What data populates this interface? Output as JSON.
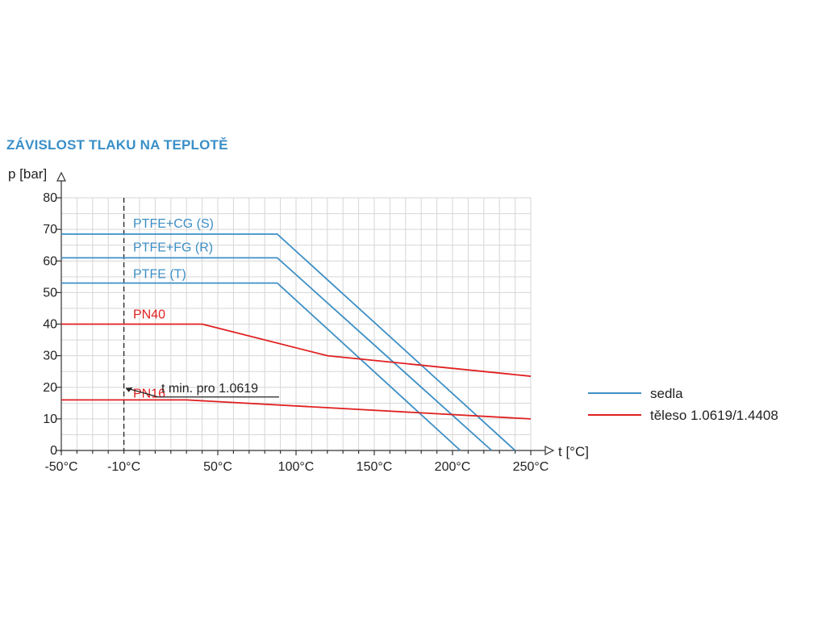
{
  "title": "ZÁVISLOST TLAKU NA TEPLOTĚ",
  "chart_data": {
    "type": "line",
    "ylabel": "p [bar]",
    "xlabel": "t [°C]",
    "xlim": [
      -50,
      250
    ],
    "ylim": [
      0,
      80
    ],
    "x_ticks": [
      {
        "value": -50,
        "label": "-50°C"
      },
      {
        "value": -10,
        "label": "-10°C"
      },
      {
        "value": 50,
        "label": "50°C"
      },
      {
        "value": 100,
        "label": "100°C"
      },
      {
        "value": 150,
        "label": "150°C"
      },
      {
        "value": 200,
        "label": "200°C"
      },
      {
        "value": 250,
        "label": "250°C"
      }
    ],
    "y_ticks": [
      {
        "value": 0,
        "label": "0"
      },
      {
        "value": 10,
        "label": "10"
      },
      {
        "value": 20,
        "label": "20"
      },
      {
        "value": 30,
        "label": "30"
      },
      {
        "value": 40,
        "label": "40"
      },
      {
        "value": 50,
        "label": "50"
      },
      {
        "value": 60,
        "label": "60"
      },
      {
        "value": 70,
        "label": "70"
      },
      {
        "value": 80,
        "label": "80"
      }
    ],
    "grid": true,
    "series": [
      {
        "name": "PTFE+CG (S)",
        "group": "sedla",
        "color": "#3d8fc5",
        "x": [
          -50,
          88,
          240
        ],
        "y": [
          68.5,
          68.5,
          0
        ]
      },
      {
        "name": "PTFE+FG (R)",
        "group": "sedla",
        "color": "#3d8fc5",
        "x": [
          -50,
          88,
          225
        ],
        "y": [
          61,
          61,
          0
        ]
      },
      {
        "name": "PTFE (T)",
        "group": "sedla",
        "color": "#3d8fc5",
        "x": [
          -50,
          88,
          205
        ],
        "y": [
          53,
          53,
          0
        ]
      },
      {
        "name": "PN40",
        "group": "těleso 1.0619/1.4408",
        "color": "#e02020",
        "x": [
          -50,
          40,
          120,
          250
        ],
        "y": [
          40,
          40,
          30,
          23.5
        ]
      },
      {
        "name": "PN16",
        "group": "těleso 1.0619/1.4408",
        "color": "#e02020",
        "x": [
          -50,
          30,
          250
        ],
        "y": [
          16,
          16,
          10
        ]
      }
    ],
    "annotations": [
      {
        "text": "t min. pro 1.0619",
        "x": -10,
        "y": 20,
        "line_style": "dashed vertical"
      }
    ],
    "legend": {
      "placement": "right",
      "entries": [
        {
          "label": "sedla",
          "color": "#3d8fc5"
        },
        {
          "label": "těleso 1.0619/1.4408",
          "color": "#e02020"
        }
      ]
    }
  }
}
